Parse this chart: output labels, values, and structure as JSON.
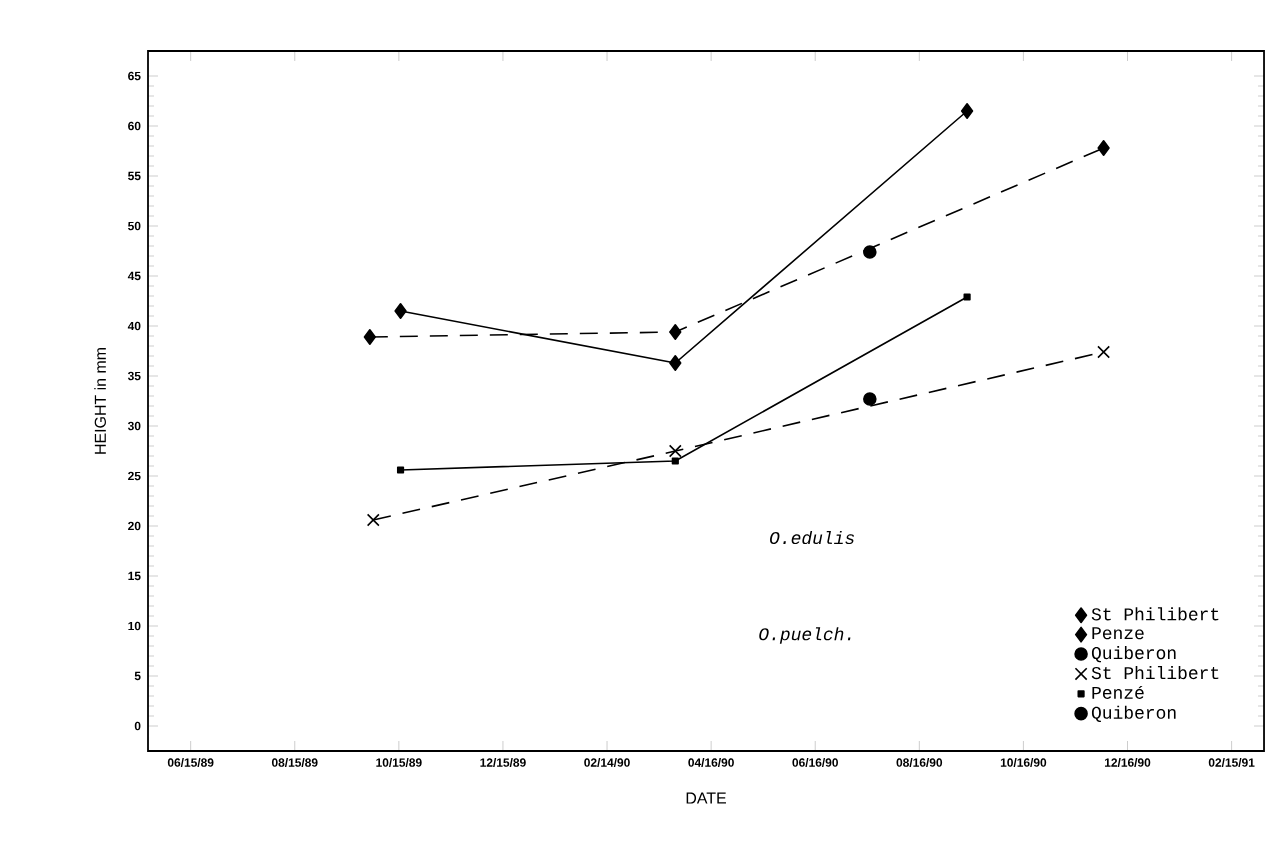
{
  "chart_data": {
    "type": "line",
    "xlabel": "DATE",
    "ylabel": "HEIGHT in mm",
    "xlim": [
      "1989-05-21",
      "1991-03-06"
    ],
    "ylim": [
      -2.5,
      67.5
    ],
    "xticks": [
      {
        "value": "1989-06-15",
        "label": "06/15/89"
      },
      {
        "value": "1989-08-15",
        "label": "08/15/89"
      },
      {
        "value": "1989-10-15",
        "label": "10/15/89"
      },
      {
        "value": "1989-12-15",
        "label": "12/15/89"
      },
      {
        "value": "1990-02-14",
        "label": "02/14/90"
      },
      {
        "value": "1990-04-16",
        "label": "04/16/90"
      },
      {
        "value": "1990-06-16",
        "label": "06/16/90"
      },
      {
        "value": "1990-08-16",
        "label": "08/16/90"
      },
      {
        "value": "1990-10-16",
        "label": "10/16/90"
      },
      {
        "value": "1990-12-16",
        "label": "12/16/90"
      },
      {
        "value": "1991-02-15",
        "label": "02/15/91"
      }
    ],
    "yticks": [
      0,
      5,
      10,
      15,
      20,
      25,
      30,
      35,
      40,
      45,
      50,
      55,
      60,
      65
    ],
    "grid": false,
    "legend": "bottom right",
    "tick_labels": "xy",
    "annotations": [
      "O.edulis",
      "O.puelch."
    ],
    "series": [
      {
        "name": "St Philibert",
        "color": "#000000",
        "marker": "diamond",
        "line_style": "dashed",
        "x": [
          "1989-09-28",
          "1990-03-26",
          "1990-12-02"
        ],
        "values": [
          38.9,
          39.4,
          57.8
        ]
      },
      {
        "name": "Penze",
        "color": "#000000",
        "marker": "diamond",
        "line_style": "solid",
        "x": [
          "1989-10-16",
          "1990-03-26",
          "1990-09-13"
        ],
        "values": [
          41.5,
          36.3,
          61.5
        ]
      },
      {
        "name": "Quiberon",
        "color": "#000000",
        "marker": "circle",
        "line_style": "none",
        "x": [
          "1990-07-18"
        ],
        "values": [
          47.4
        ]
      },
      {
        "name": "St Philibert",
        "color": "#000000",
        "marker": "cross",
        "line_style": "dashed",
        "x": [
          "1989-09-30",
          "1990-03-26",
          "1990-12-02"
        ],
        "values": [
          20.6,
          27.5,
          37.4
        ]
      },
      {
        "name": "Penzé",
        "color": "#000000",
        "marker": "square",
        "line_style": "solid",
        "x": [
          "1989-10-16",
          "1990-03-26",
          "1990-09-13"
        ],
        "values": [
          25.6,
          26.5,
          42.9
        ]
      },
      {
        "name": "Quiberon",
        "color": "#000000",
        "marker": "circle",
        "line_style": "none",
        "x": [
          "1990-07-18"
        ],
        "values": [
          32.7
        ]
      }
    ]
  }
}
